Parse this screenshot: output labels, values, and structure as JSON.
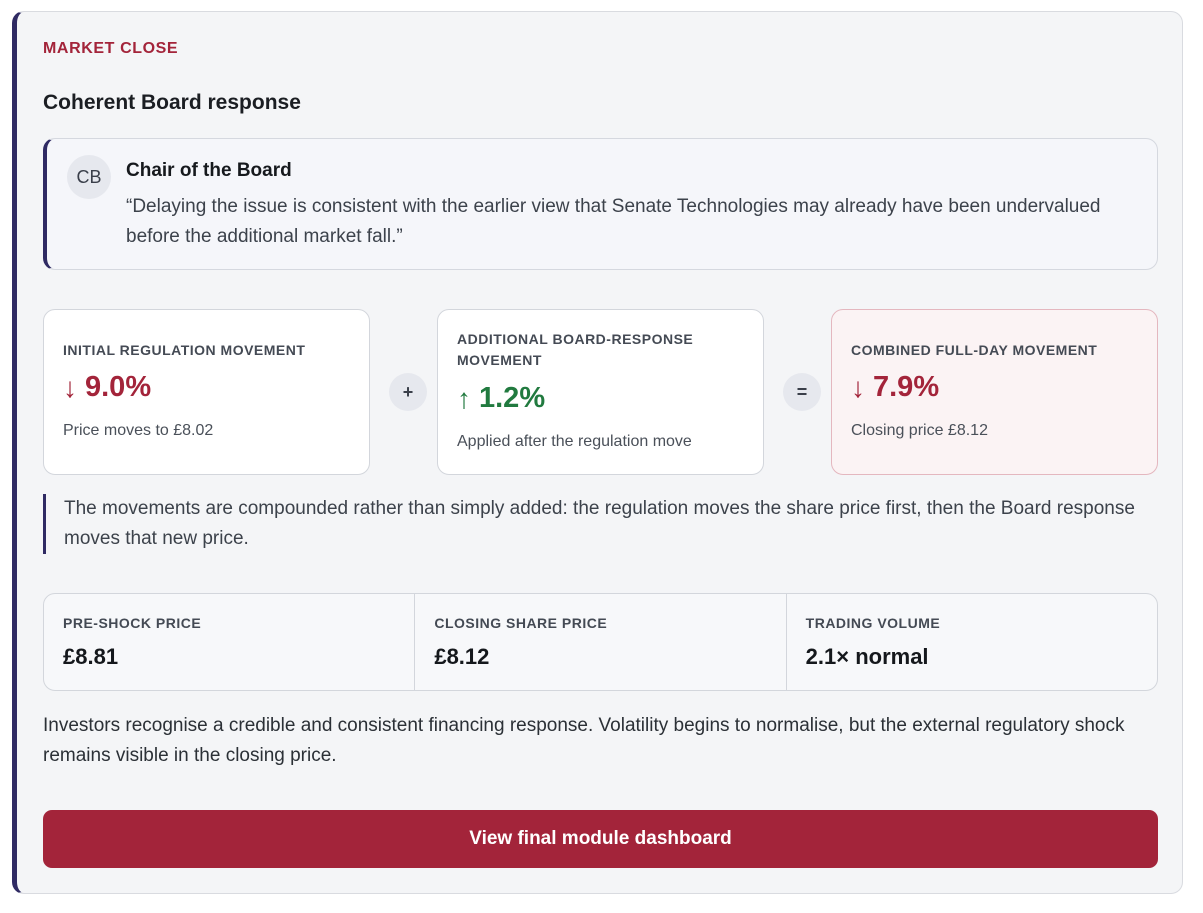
{
  "header": {
    "eyebrow": "MARKET CLOSE",
    "title": "Coherent Board response"
  },
  "quote": {
    "initials": "CB",
    "speaker": "Chair of the Board",
    "text": "“Delaying the issue is consistent with the earlier view that Senate Technologies may already have been undervalued before the additional market fall.”"
  },
  "movements": [
    {
      "label": "INITIAL REGULATION MOVEMENT",
      "direction": "down",
      "arrow": "↓",
      "value": "9.0%",
      "note": "Price moves to £8.02"
    },
    {
      "label": "ADDITIONAL BOARD-RESPONSE MOVEMENT",
      "direction": "up",
      "arrow": "↑",
      "value": "1.2%",
      "note": "Applied after the regulation move"
    },
    {
      "label": "COMBINED FULL-DAY MOVEMENT",
      "direction": "down",
      "arrow": "↓",
      "value": "7.9%",
      "note": "Closing price £8.12"
    }
  ],
  "operators": {
    "plus": "+",
    "equals": "="
  },
  "note": "The movements are compounded rather than simply added: the regulation moves the share price first, then the Board response moves that new price.",
  "stats": [
    {
      "label": "PRE-SHOCK PRICE",
      "value": "£8.81"
    },
    {
      "label": "CLOSING SHARE PRICE",
      "value": "£8.12"
    },
    {
      "label": "TRADING VOLUME",
      "value": "2.1× normal"
    }
  ],
  "summary": "Investors recognise a credible and consistent financing response. Volatility begins to normalise, but the external regulatory shock remains visible in the closing price.",
  "cta": {
    "label": "View final module dashboard"
  },
  "colors": {
    "accent": "#a3243a",
    "up": "#217a3f",
    "rail": "#2f2a63"
  }
}
